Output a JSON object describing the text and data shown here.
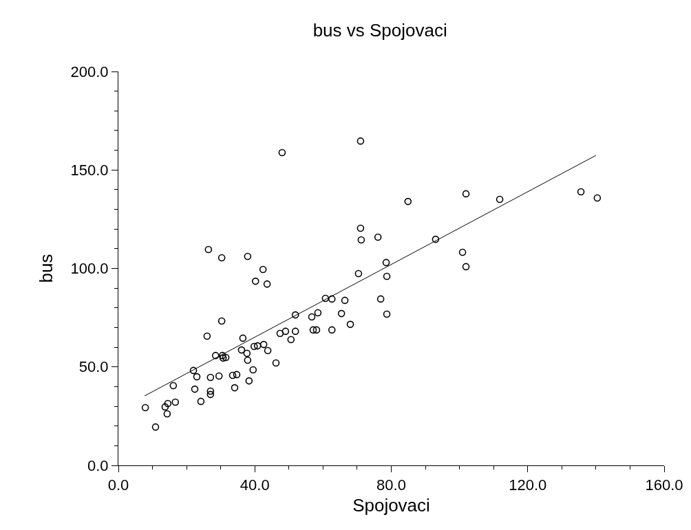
{
  "chart_data": {
    "type": "scatter",
    "title": "bus vs Spojovaci",
    "xlabel": "Spojovaci",
    "ylabel": "bus",
    "xlim": [
      0,
      160
    ],
    "ylim": [
      0,
      200
    ],
    "xticks": [
      {
        "value": 0,
        "label": "0.0"
      },
      {
        "value": 10,
        "label": null
      },
      {
        "value": 20,
        "label": null
      },
      {
        "value": 30,
        "label": null
      },
      {
        "value": 40,
        "label": "40.0"
      },
      {
        "value": 50,
        "label": null
      },
      {
        "value": 60,
        "label": null
      },
      {
        "value": 70,
        "label": null
      },
      {
        "value": 80,
        "label": "80.0"
      },
      {
        "value": 90,
        "label": null
      },
      {
        "value": 100,
        "label": null
      },
      {
        "value": 110,
        "label": null
      },
      {
        "value": 120,
        "label": "120.0"
      },
      {
        "value": 130,
        "label": null
      },
      {
        "value": 140,
        "label": null
      },
      {
        "value": 150,
        "label": null
      },
      {
        "value": 160,
        "label": "160.0"
      }
    ],
    "yticks": [
      {
        "value": 0,
        "label": "0.0"
      },
      {
        "value": 10,
        "label": null
      },
      {
        "value": 20,
        "label": null
      },
      {
        "value": 30,
        "label": null
      },
      {
        "value": 40,
        "label": null
      },
      {
        "value": 50,
        "label": "50.0"
      },
      {
        "value": 60,
        "label": null
      },
      {
        "value": 70,
        "label": null
      },
      {
        "value": 80,
        "label": null
      },
      {
        "value": 90,
        "label": null
      },
      {
        "value": 100,
        "label": "100.0"
      },
      {
        "value": 110,
        "label": null
      },
      {
        "value": 120,
        "label": null
      },
      {
        "value": 130,
        "label": null
      },
      {
        "value": 140,
        "label": null
      },
      {
        "value": 150,
        "label": "150.0"
      },
      {
        "value": 160,
        "label": null
      },
      {
        "value": 170,
        "label": null
      },
      {
        "value": 180,
        "label": null
      },
      {
        "value": 190,
        "label": null
      },
      {
        "value": 200,
        "label": "200.0"
      }
    ],
    "series": [
      {
        "marker": "circle",
        "color": "#000000",
        "x": [
          7.9,
          10.9,
          13.7,
          14.3,
          14.5,
          16.7,
          16.1,
          22.0,
          23.0,
          22.4,
          24.2,
          26.0,
          26.4,
          30.3,
          37.9,
          42.4,
          40.2,
          43.6,
          30.3,
          36.5,
          28.5,
          30.5,
          31.5,
          30.7,
          27.0,
          29.5,
          27.0,
          27.0,
          33.5,
          34.7,
          34.1,
          36.1,
          37.7,
          37.9,
          39.5,
          38.3,
          39.8,
          40.8,
          42.6,
          43.8,
          46.2,
          47.4,
          49.0,
          51.9,
          50.6,
          51.9,
          48.0,
          71.0,
          71.0,
          71.2,
          76.1,
          70.4,
          60.7,
          62.6,
          66.4,
          76.9,
          56.7,
          58.5,
          65.4,
          78.7,
          68.0,
          57.1,
          58.1,
          62.6,
          84.9,
          101.9,
          111.8,
          135.6,
          140.4,
          93.0,
          100.9,
          101.9,
          78.5,
          78.7
        ],
        "values": [
          29.3,
          19.5,
          29.7,
          26.2,
          31.4,
          32.1,
          40.5,
          48.2,
          45.0,
          38.7,
          32.5,
          65.6,
          109.6,
          105.4,
          106.1,
          99.5,
          93.5,
          92.1,
          73.3,
          64.6,
          55.8,
          55.8,
          54.8,
          54.5,
          44.7,
          45.4,
          37.7,
          36.0,
          45.7,
          46.1,
          39.4,
          58.6,
          56.9,
          53.4,
          48.5,
          42.9,
          60.4,
          60.7,
          61.4,
          58.3,
          52.0,
          67.0,
          68.1,
          68.1,
          63.9,
          76.4,
          158.8,
          164.7,
          120.4,
          114.5,
          115.9,
          97.4,
          84.8,
          84.5,
          83.8,
          84.5,
          75.4,
          77.5,
          77.1,
          76.8,
          71.6,
          68.8,
          68.8,
          68.8,
          134.0,
          137.9,
          135.1,
          138.9,
          135.8,
          114.8,
          108.2,
          100.9,
          103.0,
          96.0
        ]
      },
      {
        "type": "line",
        "marker": "none",
        "line_style": "solid",
        "color": "#000000",
        "x": [
          7.7,
          140.0
        ],
        "values": [
          35.3,
          157.4
        ]
      }
    ]
  }
}
